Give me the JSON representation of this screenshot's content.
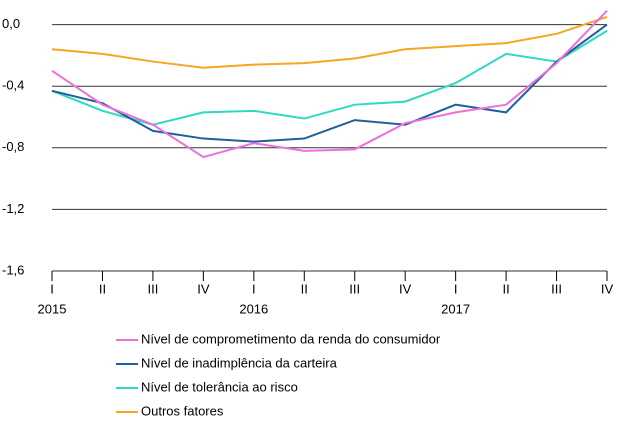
{
  "chart_data": {
    "type": "line",
    "categories": [
      "I",
      "II",
      "III",
      "IV",
      "I",
      "II",
      "III",
      "IV",
      "I",
      "II",
      "III",
      "IV"
    ],
    "year_labels": [
      "2015",
      "2016",
      "2017"
    ],
    "series": [
      {
        "name": "Nível de comprometimento da renda do consumidor",
        "color": "#ee6fdc",
        "values": [
          -0.3,
          -0.52,
          -0.65,
          -0.86,
          -0.77,
          -0.82,
          -0.81,
          -0.64,
          -0.57,
          -0.52,
          -0.25,
          0.09
        ]
      },
      {
        "name": "Nível de inadimplência da carteira",
        "color": "#1f5f9f",
        "values": [
          -0.43,
          -0.51,
          -0.69,
          -0.74,
          -0.76,
          -0.74,
          -0.62,
          -0.65,
          -0.52,
          -0.57,
          -0.24,
          0.0
        ]
      },
      {
        "name": "Nível de tolerância ao risco",
        "color": "#2ed9c3",
        "values": [
          -0.43,
          -0.56,
          -0.65,
          -0.57,
          -0.56,
          -0.61,
          -0.52,
          -0.5,
          -0.38,
          -0.19,
          -0.24,
          -0.04
        ]
      },
      {
        "name": "Outros fatores",
        "color": "#f5a623",
        "values": [
          -0.16,
          -0.19,
          -0.24,
          -0.28,
          -0.26,
          -0.25,
          -0.22,
          -0.16,
          -0.14,
          -0.12,
          -0.06,
          0.05
        ]
      }
    ],
    "ylim": [
      -1.6,
      0.12
    ],
    "yticks": [
      {
        "value": 0.0,
        "label": "0,0"
      },
      {
        "value": -0.4,
        "label": "-0,4"
      },
      {
        "value": -0.8,
        "label": "-0,8"
      },
      {
        "value": -1.2,
        "label": "-1,2"
      },
      {
        "value": -1.6,
        "label": "-1,6"
      }
    ],
    "grid": true
  }
}
